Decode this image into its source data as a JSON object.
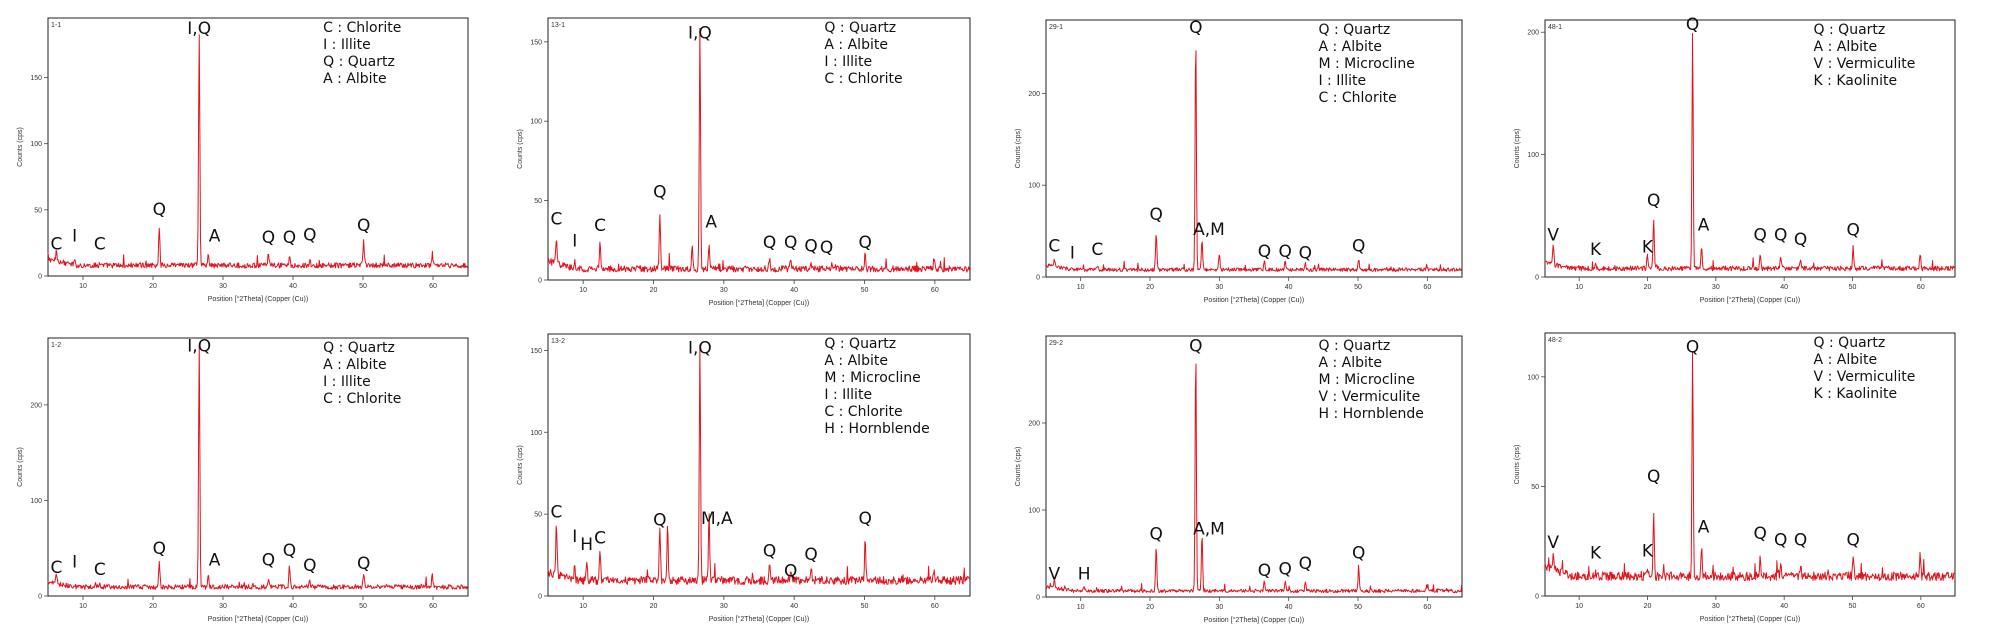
{
  "chart_data": [
    {
      "type": "line",
      "panel_title": "1-1",
      "xlabel": "Position [°2Theta] (Copper (Cu))",
      "ylabel": "Counts (cps)",
      "xlim": [
        5,
        65
      ],
      "ylim": [
        0,
        195
      ],
      "xticks": [
        10,
        20,
        30,
        40,
        50,
        60
      ],
      "yticks": [
        0,
        50,
        100,
        150
      ],
      "baseline": 6,
      "noise": 4,
      "legend": [
        "C : Chlorite",
        "I : Illite",
        "Q : Quartz",
        "A : Albite"
      ],
      "peaks": [
        {
          "x": 6.2,
          "y": 14
        },
        {
          "x": 8.8,
          "y": 9
        },
        {
          "x": 12.4,
          "y": 8
        },
        {
          "x": 20.9,
          "y": 36
        },
        {
          "x": 26.6,
          "y": 180
        },
        {
          "x": 27.9,
          "y": 16
        },
        {
          "x": 36.5,
          "y": 16
        },
        {
          "x": 39.5,
          "y": 14
        },
        {
          "x": 42.4,
          "y": 11
        },
        {
          "x": 50.1,
          "y": 24
        },
        {
          "x": 59.9,
          "y": 12
        }
      ],
      "labels": [
        {
          "text": "C",
          "x": 6.2,
          "y": 20
        },
        {
          "text": "I",
          "x": 8.8,
          "y": 26
        },
        {
          "text": "C",
          "x": 12.4,
          "y": 20
        },
        {
          "text": "Q",
          "x": 20.9,
          "y": 46
        },
        {
          "text": "I,Q",
          "x": 26.6,
          "y": 183
        },
        {
          "text": "A",
          "x": 28.8,
          "y": 26
        },
        {
          "text": "Q",
          "x": 36.5,
          "y": 25
        },
        {
          "text": "Q",
          "x": 39.5,
          "y": 25
        },
        {
          "text": "Q",
          "x": 42.4,
          "y": 27
        },
        {
          "text": "Q",
          "x": 50.1,
          "y": 34
        }
      ]
    },
    {
      "type": "line",
      "panel_title": "13-1",
      "xlabel": "Position [°2Theta] (Copper (Cu))",
      "ylabel": "Counts (cps)",
      "xlim": [
        5,
        65
      ],
      "ylim": [
        0,
        165
      ],
      "xticks": [
        10,
        20,
        30,
        40,
        50,
        60
      ],
      "yticks": [
        0,
        50,
        100,
        150
      ],
      "baseline": 5,
      "noise": 4,
      "legend": [
        "Q : Quartz",
        "A : Albite",
        "I : Illite",
        "C : Chlorite"
      ],
      "peaks": [
        {
          "x": 6.2,
          "y": 22
        },
        {
          "x": 8.8,
          "y": 10
        },
        {
          "x": 12.4,
          "y": 21
        },
        {
          "x": 20.9,
          "y": 40
        },
        {
          "x": 25.5,
          "y": 20
        },
        {
          "x": 26.6,
          "y": 155
        },
        {
          "x": 27.9,
          "y": 22
        },
        {
          "x": 36.5,
          "y": 12
        },
        {
          "x": 39.5,
          "y": 11
        },
        {
          "x": 42.4,
          "y": 9
        },
        {
          "x": 45.8,
          "y": 8
        },
        {
          "x": 50.1,
          "y": 16
        },
        {
          "x": 59.9,
          "y": 12
        }
      ],
      "labels": [
        {
          "text": "C",
          "x": 6.2,
          "y": 35
        },
        {
          "text": "I",
          "x": 8.8,
          "y": 21
        },
        {
          "text": "C",
          "x": 12.4,
          "y": 31
        },
        {
          "text": "Q",
          "x": 20.9,
          "y": 52
        },
        {
          "text": "I,Q",
          "x": 26.6,
          "y": 152
        },
        {
          "text": "A",
          "x": 28.2,
          "y": 33
        },
        {
          "text": "Q",
          "x": 36.5,
          "y": 20
        },
        {
          "text": "Q",
          "x": 39.5,
          "y": 20
        },
        {
          "text": "Q",
          "x": 42.4,
          "y": 18
        },
        {
          "text": "Q",
          "x": 44.6,
          "y": 17
        },
        {
          "text": "Q",
          "x": 50.1,
          "y": 20
        }
      ]
    },
    {
      "type": "line",
      "panel_title": "29-1",
      "xlabel": "Position [°2Theta] (Copper (Cu))",
      "ylabel": "Counts (cps)",
      "xlim": [
        5,
        65
      ],
      "ylim": [
        0,
        280
      ],
      "xticks": [
        10,
        20,
        30,
        40,
        50,
        60
      ],
      "yticks": [
        0,
        100,
        200
      ],
      "baseline": 6,
      "noise": 4,
      "legend": [
        "Q : Quartz",
        "A : Albite",
        "M : Microcline",
        "I : Illite",
        "C : Chlorite"
      ],
      "peaks": [
        {
          "x": 6.2,
          "y": 14
        },
        {
          "x": 8.8,
          "y": 8
        },
        {
          "x": 12.4,
          "y": 9
        },
        {
          "x": 20.9,
          "y": 48
        },
        {
          "x": 26.6,
          "y": 265
        },
        {
          "x": 27.5,
          "y": 40
        },
        {
          "x": 30.0,
          "y": 24
        },
        {
          "x": 36.5,
          "y": 16
        },
        {
          "x": 39.5,
          "y": 15
        },
        {
          "x": 42.4,
          "y": 12
        },
        {
          "x": 50.1,
          "y": 18
        },
        {
          "x": 59.9,
          "y": 12
        }
      ],
      "labels": [
        {
          "text": "C",
          "x": 6.2,
          "y": 28
        },
        {
          "text": "I",
          "x": 8.8,
          "y": 20
        },
        {
          "text": "C",
          "x": 12.4,
          "y": 24
        },
        {
          "text": "Q",
          "x": 20.9,
          "y": 62
        },
        {
          "text": "Q",
          "x": 26.6,
          "y": 266
        },
        {
          "text": "A,M",
          "x": 28.5,
          "y": 46
        },
        {
          "text": "Q",
          "x": 36.5,
          "y": 22
        },
        {
          "text": "Q",
          "x": 39.5,
          "y": 22
        },
        {
          "text": "Q",
          "x": 42.4,
          "y": 20
        },
        {
          "text": "Q",
          "x": 50.1,
          "y": 28
        }
      ]
    },
    {
      "type": "line",
      "panel_title": "48-1",
      "xlabel": "Position [°2Theta] (Copper (Cu))",
      "ylabel": "Counts (cps)",
      "xlim": [
        5,
        65
      ],
      "ylim": [
        0,
        210
      ],
      "xticks": [
        10,
        20,
        30,
        40,
        50,
        60
      ],
      "yticks": [
        0,
        100,
        200
      ],
      "baseline": 5,
      "noise": 4,
      "legend": [
        "Q : Quartz",
        "A : Albite",
        "V : Vermiculite",
        "K : Kaolinite"
      ],
      "peaks": [
        {
          "x": 6.2,
          "y": 20
        },
        {
          "x": 12.4,
          "y": 8
        },
        {
          "x": 20.0,
          "y": 16
        },
        {
          "x": 20.9,
          "y": 45
        },
        {
          "x": 26.6,
          "y": 200
        },
        {
          "x": 27.9,
          "y": 22
        },
        {
          "x": 36.5,
          "y": 16
        },
        {
          "x": 39.5,
          "y": 15
        },
        {
          "x": 42.4,
          "y": 11
        },
        {
          "x": 50.1,
          "y": 22
        },
        {
          "x": 59.9,
          "y": 18
        }
      ],
      "labels": [
        {
          "text": "V",
          "x": 6.2,
          "y": 30
        },
        {
          "text": "K",
          "x": 12.4,
          "y": 18
        },
        {
          "text": "K",
          "x": 20.0,
          "y": 20
        },
        {
          "text": "Q",
          "x": 20.9,
          "y": 58
        },
        {
          "text": "Q",
          "x": 26.6,
          "y": 202
        },
        {
          "text": "A",
          "x": 28.2,
          "y": 38
        },
        {
          "text": "Q",
          "x": 36.5,
          "y": 30
        },
        {
          "text": "Q",
          "x": 39.5,
          "y": 30
        },
        {
          "text": "Q",
          "x": 42.4,
          "y": 26
        },
        {
          "text": "Q",
          "x": 50.1,
          "y": 34
        }
      ]
    },
    {
      "type": "line",
      "panel_title": "1-2",
      "xlabel": "Position [°2Theta] (Copper (Cu))",
      "ylabel": "Counts (cps)",
      "xlim": [
        5,
        65
      ],
      "ylim": [
        0,
        270
      ],
      "xticks": [
        10,
        20,
        30,
        40,
        50,
        60
      ],
      "yticks": [
        0,
        100,
        200
      ],
      "baseline": 7,
      "noise": 5,
      "legend": [
        "Q : Quartz",
        "A : Albite",
        "I : Illite",
        "C : Chlorite"
      ],
      "peaks": [
        {
          "x": 6.2,
          "y": 16
        },
        {
          "x": 8.8,
          "y": 10
        },
        {
          "x": 12.4,
          "y": 9
        },
        {
          "x": 20.9,
          "y": 34
        },
        {
          "x": 26.6,
          "y": 260
        },
        {
          "x": 27.9,
          "y": 20
        },
        {
          "x": 36.5,
          "y": 16
        },
        {
          "x": 39.5,
          "y": 28
        },
        {
          "x": 42.4,
          "y": 14
        },
        {
          "x": 50.1,
          "y": 22
        },
        {
          "x": 59.9,
          "y": 20
        }
      ],
      "labels": [
        {
          "text": "C",
          "x": 6.2,
          "y": 24
        },
        {
          "text": "I",
          "x": 8.8,
          "y": 30
        },
        {
          "text": "C",
          "x": 12.4,
          "y": 22
        },
        {
          "text": "Q",
          "x": 20.9,
          "y": 44
        },
        {
          "text": "I,Q",
          "x": 26.6,
          "y": 256
        },
        {
          "text": "A",
          "x": 28.8,
          "y": 32
        },
        {
          "text": "Q",
          "x": 36.5,
          "y": 32
        },
        {
          "text": "Q",
          "x": 39.5,
          "y": 42
        },
        {
          "text": "Q",
          "x": 42.4,
          "y": 26
        },
        {
          "text": "Q",
          "x": 50.1,
          "y": 28
        }
      ]
    },
    {
      "type": "line",
      "panel_title": "13-2",
      "xlabel": "Position [°2Theta] (Copper (Cu))",
      "ylabel": "Counts (cps)",
      "xlim": [
        5,
        65
      ],
      "ylim": [
        0,
        160
      ],
      "xticks": [
        10,
        20,
        30,
        40,
        50,
        60
      ],
      "yticks": [
        0,
        50,
        100,
        150
      ],
      "baseline": 7,
      "noise": 5,
      "legend": [
        "Q : Quartz",
        "A : Albite",
        "M : Microcline",
        "I : Illite",
        "C : Chlorite",
        "H : Hornblende"
      ],
      "peaks": [
        {
          "x": 6.2,
          "y": 38
        },
        {
          "x": 8.8,
          "y": 16
        },
        {
          "x": 10.5,
          "y": 20
        },
        {
          "x": 12.4,
          "y": 24
        },
        {
          "x": 20.9,
          "y": 40
        },
        {
          "x": 22.0,
          "y": 40
        },
        {
          "x": 26.6,
          "y": 150
        },
        {
          "x": 27.9,
          "y": 48
        },
        {
          "x": 36.5,
          "y": 20
        },
        {
          "x": 39.5,
          "y": 14
        },
        {
          "x": 42.4,
          "y": 16
        },
        {
          "x": 50.1,
          "y": 32
        },
        {
          "x": 59.9,
          "y": 14
        }
      ],
      "labels": [
        {
          "text": "C",
          "x": 6.2,
          "y": 48
        },
        {
          "text": "I",
          "x": 8.8,
          "y": 33
        },
        {
          "text": "H",
          "x": 10.5,
          "y": 28
        },
        {
          "text": "C",
          "x": 12.4,
          "y": 32
        },
        {
          "text": "Q",
          "x": 20.9,
          "y": 43
        },
        {
          "text": "I,Q",
          "x": 26.6,
          "y": 148
        },
        {
          "text": "M,A",
          "x": 29.0,
          "y": 44
        },
        {
          "text": "Q",
          "x": 36.5,
          "y": 24
        },
        {
          "text": "Q",
          "x": 39.5,
          "y": 12
        },
        {
          "text": "Q",
          "x": 42.4,
          "y": 22
        },
        {
          "text": "Q",
          "x": 50.1,
          "y": 44
        }
      ]
    },
    {
      "type": "line",
      "panel_title": "29-2",
      "xlabel": "Position [°2Theta] (Copper (Cu))",
      "ylabel": "Counts (cps)",
      "xlim": [
        5,
        65
      ],
      "ylim": [
        0,
        300
      ],
      "xticks": [
        10,
        20,
        30,
        40,
        50,
        60
      ],
      "yticks": [
        0,
        100,
        200
      ],
      "baseline": 5,
      "noise": 4,
      "legend": [
        "Q : Quartz",
        "A : Albite",
        "M : Microcline",
        "V : Vermiculite",
        "H : Hornblende"
      ],
      "peaks": [
        {
          "x": 6.2,
          "y": 14
        },
        {
          "x": 10.5,
          "y": 9
        },
        {
          "x": 20.9,
          "y": 55
        },
        {
          "x": 26.6,
          "y": 285
        },
        {
          "x": 27.5,
          "y": 70
        },
        {
          "x": 36.5,
          "y": 16
        },
        {
          "x": 39.5,
          "y": 16
        },
        {
          "x": 42.4,
          "y": 14
        },
        {
          "x": 50.1,
          "y": 30
        },
        {
          "x": 59.9,
          "y": 10
        }
      ],
      "labels": [
        {
          "text": "V",
          "x": 6.2,
          "y": 20
        },
        {
          "text": "H",
          "x": 10.5,
          "y": 20
        },
        {
          "text": "Q",
          "x": 20.9,
          "y": 66
        },
        {
          "text": "Q",
          "x": 26.6,
          "y": 282
        },
        {
          "text": "A,M",
          "x": 28.5,
          "y": 72
        },
        {
          "text": "Q",
          "x": 36.5,
          "y": 24
        },
        {
          "text": "Q",
          "x": 39.5,
          "y": 26
        },
        {
          "text": "Q",
          "x": 42.4,
          "y": 32
        },
        {
          "text": "Q",
          "x": 50.1,
          "y": 44
        }
      ]
    },
    {
      "type": "line",
      "panel_title": "48-2",
      "xlabel": "Position [°2Theta] (Copper (Cu))",
      "ylabel": "Counts (cps)",
      "xlim": [
        5,
        65
      ],
      "ylim": [
        0,
        120
      ],
      "xticks": [
        10,
        20,
        30,
        40,
        50,
        60
      ],
      "yticks": [
        0,
        50,
        100
      ],
      "baseline": 7,
      "noise": 4,
      "legend": [
        "Q : Quartz",
        "A : Albite",
        "V : Vermiculite",
        "K : Kaolinite"
      ],
      "peaks": [
        {
          "x": 6.2,
          "y": 14
        },
        {
          "x": 12.4,
          "y": 8
        },
        {
          "x": 20.0,
          "y": 12
        },
        {
          "x": 20.9,
          "y": 35
        },
        {
          "x": 26.6,
          "y": 110
        },
        {
          "x": 27.9,
          "y": 20
        },
        {
          "x": 36.5,
          "y": 16
        },
        {
          "x": 39.5,
          "y": 14
        },
        {
          "x": 42.4,
          "y": 12
        },
        {
          "x": 50.1,
          "y": 16
        },
        {
          "x": 59.9,
          "y": 18
        }
      ],
      "labels": [
        {
          "text": "V",
          "x": 6.2,
          "y": 22
        },
        {
          "text": "K",
          "x": 12.4,
          "y": 17
        },
        {
          "text": "K",
          "x": 20.0,
          "y": 18
        },
        {
          "text": "Q",
          "x": 20.9,
          "y": 52
        },
        {
          "text": "Q",
          "x": 26.6,
          "y": 111
        },
        {
          "text": "A",
          "x": 28.2,
          "y": 29
        },
        {
          "text": "Q",
          "x": 36.5,
          "y": 26
        },
        {
          "text": "Q",
          "x": 39.5,
          "y": 23
        },
        {
          "text": "Q",
          "x": 42.4,
          "y": 23
        },
        {
          "text": "Q",
          "x": 50.1,
          "y": 23
        }
      ]
    }
  ]
}
